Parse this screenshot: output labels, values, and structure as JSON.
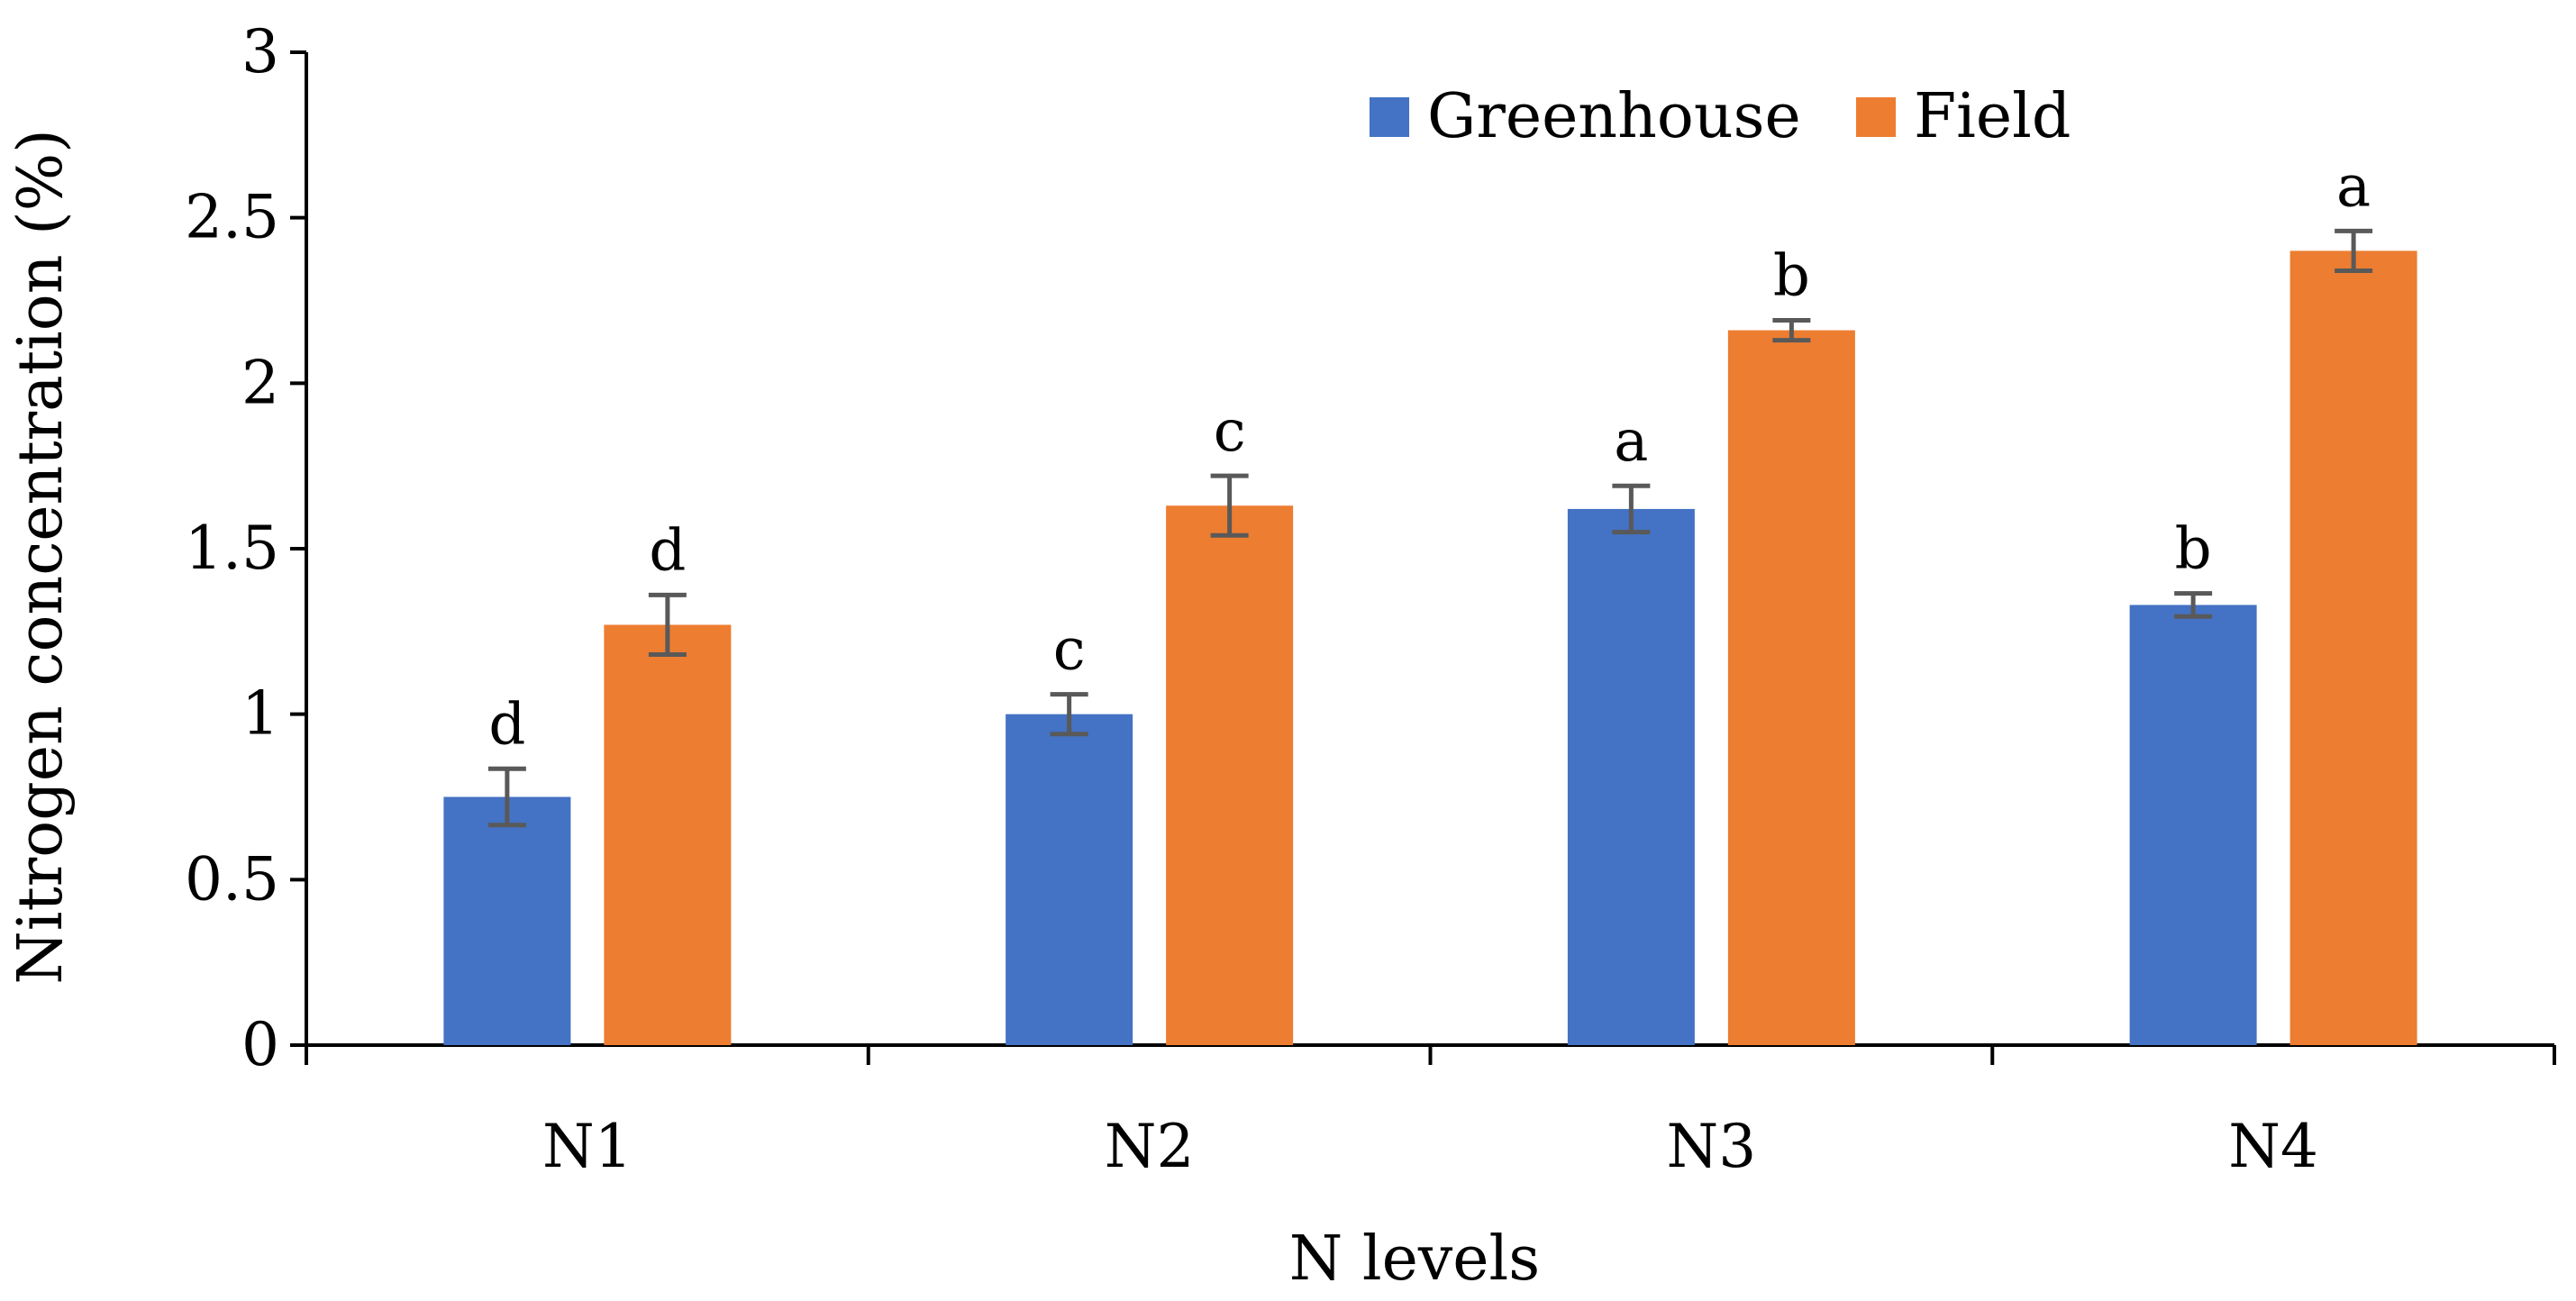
{
  "chart_data": {
    "type": "bar",
    "title": "",
    "xlabel": "N levels",
    "ylabel": "Nitrogen concentration (%)",
    "ylim": [
      0,
      3
    ],
    "yticks": [
      0,
      0.5,
      1,
      1.5,
      2,
      2.5,
      3
    ],
    "ytick_labels": [
      "0",
      "0.5",
      "1",
      "1.5",
      "2",
      "2.5",
      "3"
    ],
    "grid": false,
    "legend_position": "top-right",
    "categories": [
      "N1",
      "N2",
      "N3",
      "N4"
    ],
    "series": [
      {
        "name": "Greenhouse",
        "color": "#4472C4",
        "values": [
          0.75,
          1.0,
          1.62,
          1.33
        ],
        "errors": [
          0.085,
          0.06,
          0.07,
          0.035
        ],
        "letters": [
          "d",
          "c",
          "a",
          "b"
        ]
      },
      {
        "name": "Field",
        "color": "#ED7D31",
        "values": [
          1.27,
          1.63,
          2.16,
          2.4
        ],
        "errors": [
          0.09,
          0.09,
          0.03,
          0.06
        ],
        "letters": [
          "d",
          "c",
          "b",
          "a"
        ]
      }
    ],
    "error_bar_color": "#595959",
    "axis_color": "#000000"
  }
}
